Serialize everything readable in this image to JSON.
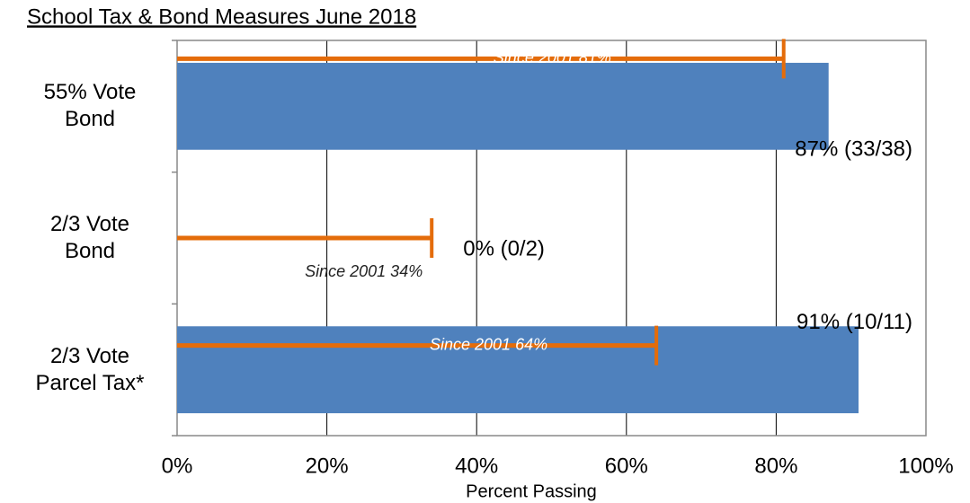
{
  "chart_data": {
    "type": "bar",
    "orientation": "horizontal",
    "title": "School Tax & Bond Measures June 2018",
    "xlabel": "Percent Passing",
    "categories": [
      "55% Vote Bond",
      "2/3 Vote Bond",
      "2/3 Vote Parcel Tax*"
    ],
    "values": [
      87,
      0,
      91
    ],
    "value_labels": [
      "87% (33/38)",
      "0% (0/2)",
      "91% (10/11)"
    ],
    "color": "#4f81bd",
    "since_2001": {
      "values": [
        81,
        34,
        64
      ],
      "value_labels": [
        "Since 2001 81%",
        "Since 2001 34%",
        "Since 2001 64%"
      ],
      "color": "#e46c0a"
    },
    "xlim": [
      0,
      100
    ],
    "xticks": [
      {
        "value": 0,
        "label": "0%"
      },
      {
        "value": 20,
        "label": "20%"
      },
      {
        "value": 40,
        "label": "40%"
      },
      {
        "value": 60,
        "label": "60%"
      },
      {
        "value": 80,
        "label": "80%"
      },
      {
        "value": 100,
        "label": "100%"
      }
    ],
    "grid": true
  }
}
